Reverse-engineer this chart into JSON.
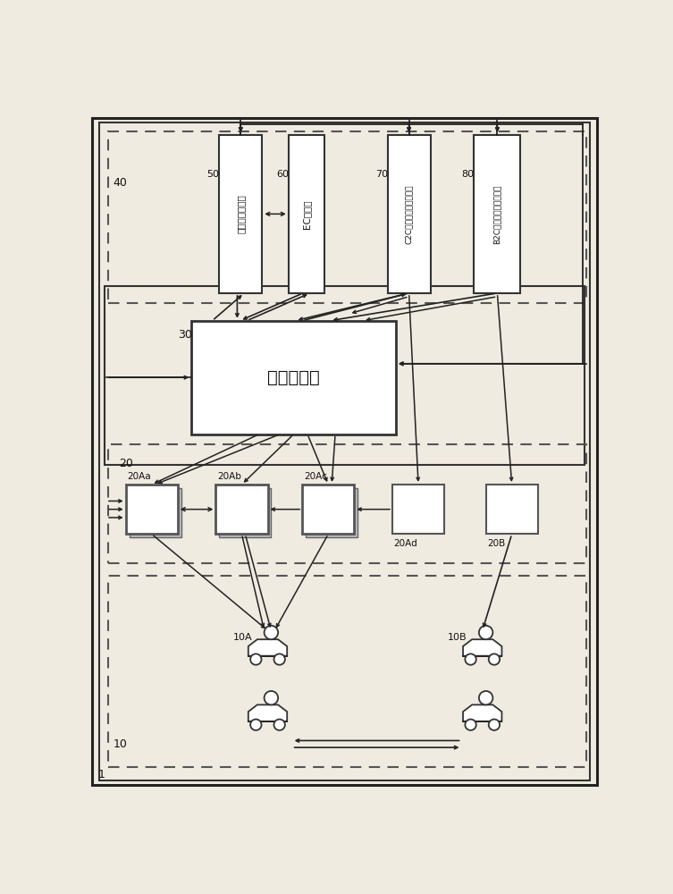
{
  "bg_color": "#f0ebe0",
  "box_fc": "#ffffff",
  "box_ec": "#333333",
  "dash_ec": "#555555",
  "arrow_color": "#222222",
  "label_1": "1",
  "label_10": "10",
  "label_10A": "10A",
  "label_10B": "10B",
  "label_20": "20",
  "label_20Aa": "20Aa",
  "label_20Ab": "20Ab",
  "label_20Ac": "20Ac",
  "label_20Ad": "20Ad",
  "label_20B": "20B",
  "label_30": "30",
  "label_40": "40",
  "label_50": "50",
  "label_60": "60",
  "label_70": "70",
  "label_80": "80",
  "text_center": "中心服务器",
  "text_50": "配送管理服务器",
  "text_60": "EC服务器",
  "text_70": "C2C汽车共享管理服务器",
  "text_80": "B2C汽车共享管理服务器"
}
